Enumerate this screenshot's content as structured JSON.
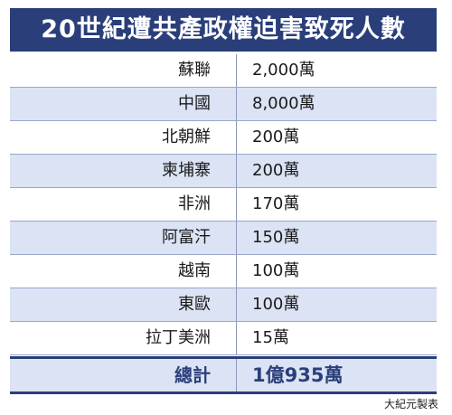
{
  "title": "20世紀遭共產政權迫害致死人數",
  "rows": [
    {
      "name": "蘇聯",
      "value": "2,000萬"
    },
    {
      "name": "中國",
      "value": "8,000萬"
    },
    {
      "name": "北朝鮮",
      "value": "200萬"
    },
    {
      "name": "柬埔寨",
      "value": "200萬"
    },
    {
      "name": "非洲",
      "value": "170萬"
    },
    {
      "name": "阿富汗",
      "value": "150萬"
    },
    {
      "name": "越南",
      "value": "100萬"
    },
    {
      "name": "東歐",
      "value": "100萬"
    },
    {
      "name": "拉丁美洲",
      "value": "15萬"
    }
  ],
  "total": {
    "label": "總計",
    "value": "1億935萬"
  },
  "credit": "大紀元製表",
  "colors": {
    "header_bg": "#2a3f7a",
    "row_shade": "#dbe3f4",
    "total_text": "#2a3f7a"
  }
}
